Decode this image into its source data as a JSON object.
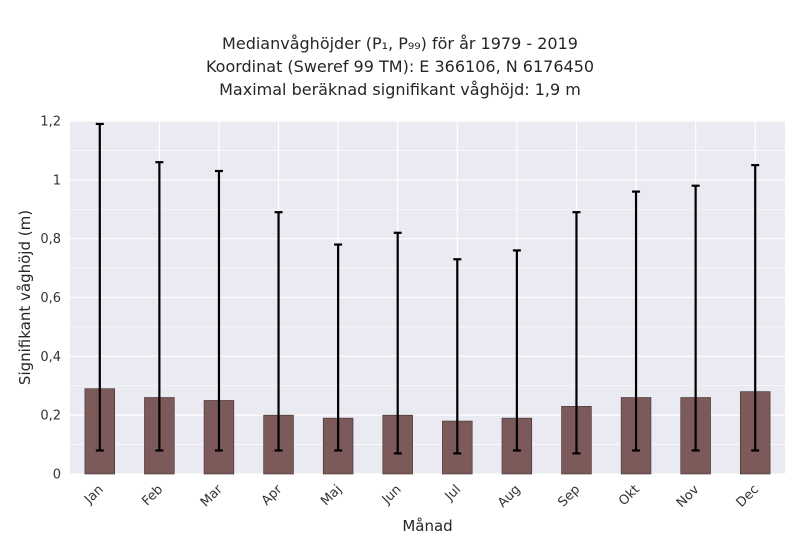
{
  "chart_data": {
    "type": "bar",
    "title_lines": [
      "Medianvåghöjder (P₁, P₉₉) för år 1979 - 2019",
      "Koordinat (Sweref 99 TM): E 366106, N 6176450",
      "Maximal beräknad signifikant våghöjd: 1,9 m"
    ],
    "xlabel": "Månad",
    "ylabel": "Signifikant våghöjd (m)",
    "categories": [
      "Jan",
      "Feb",
      "Mar",
      "Apr",
      "Maj",
      "Jun",
      "Jul",
      "Aug",
      "Sep",
      "Okt",
      "Nov",
      "Dec"
    ],
    "values": [
      0.29,
      0.26,
      0.25,
      0.2,
      0.19,
      0.2,
      0.18,
      0.19,
      0.23,
      0.26,
      0.26,
      0.28
    ],
    "p1": [
      0.08,
      0.08,
      0.08,
      0.08,
      0.08,
      0.07,
      0.07,
      0.08,
      0.07,
      0.08,
      0.08,
      0.08
    ],
    "p99": [
      1.19,
      1.06,
      1.03,
      0.89,
      0.78,
      0.82,
      0.73,
      0.76,
      0.89,
      0.96,
      0.98,
      1.05
    ],
    "ylim": [
      0,
      1.2
    ],
    "yticks": [
      0,
      0.2,
      0.4,
      0.6,
      0.8,
      1.0,
      1.2
    ],
    "ytick_labels": [
      "0",
      "0,2",
      "0,4",
      "0,6",
      "0,8",
      "1",
      "1,2"
    ],
    "grid": true,
    "colors": {
      "bar_fill": "#7c5a5a",
      "bar_edge": "#3e2c2c",
      "error_bar": "#000000",
      "plot_background": "#eaeaf2",
      "grid": "#ffffff"
    }
  }
}
